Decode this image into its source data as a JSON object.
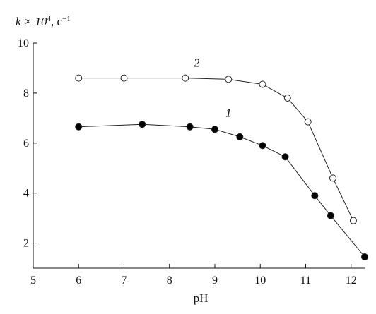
{
  "chart_data": {
    "type": "line",
    "ylabel_prefix": "k × 10",
    "ylabel_sup": "4",
    "ylabel_suffix": ", c",
    "ylabel_unit_sup": "−1",
    "xlabel": "pH",
    "xlim": [
      5,
      12.3
    ],
    "ylim": [
      1,
      10
    ],
    "xticks": [
      5,
      6,
      7,
      8,
      9,
      10,
      11,
      12
    ],
    "yticks": [
      2,
      4,
      6,
      8,
      10
    ],
    "series": [
      {
        "name": "1",
        "marker": "filled-circle",
        "x": [
          6.0,
          7.4,
          8.45,
          9.0,
          9.55,
          10.05,
          10.55,
          11.2,
          11.55,
          12.3
        ],
        "y": [
          6.65,
          6.75,
          6.65,
          6.55,
          6.25,
          5.9,
          5.45,
          3.9,
          3.1,
          1.45
        ],
        "label_at": [
          9.3,
          7.05
        ]
      },
      {
        "name": "2",
        "marker": "open-circle",
        "x": [
          6.0,
          7.0,
          8.35,
          9.3,
          10.05,
          10.6,
          11.05,
          11.6,
          12.05
        ],
        "y": [
          8.6,
          8.6,
          8.6,
          8.55,
          8.35,
          7.8,
          6.85,
          4.6,
          2.9
        ],
        "label_at": [
          8.6,
          9.05
        ]
      }
    ]
  }
}
